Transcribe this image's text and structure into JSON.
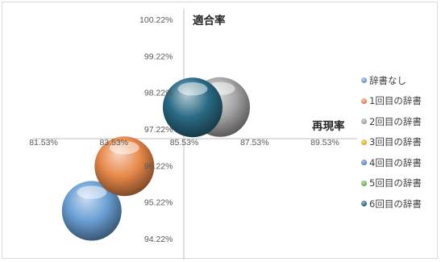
{
  "chart_data": {
    "type": "bubble",
    "xlabel": "再現率",
    "ylabel": "適合率",
    "x_ticks": [
      "81.53%",
      "83.53%",
      "85.53%",
      "87.53%",
      "89.53%"
    ],
    "y_ticks": [
      "100.22%",
      "99.22%",
      "98.22%",
      "97.22%",
      "96.22%",
      "95.22%",
      "94.22%"
    ],
    "xlim": [
      81.53,
      89.53
    ],
    "ylim": [
      94.22,
      100.22
    ],
    "axis_cross": {
      "x": 85.53,
      "y": 97.22
    },
    "legend_position": "right",
    "grid": false,
    "series": [
      {
        "name": "辞書なし",
        "color": "#6a9fd4",
        "points": [
          {
            "x": 82.9,
            "y": 94.98
          }
        ]
      },
      {
        "name": "1回目の辞書",
        "color": "#e8884a",
        "points": [
          {
            "x": 83.83,
            "y": 96.2
          }
        ]
      },
      {
        "name": "2回目の辞書",
        "color": "#a5a5a5",
        "points": [
          {
            "x": 86.55,
            "y": 97.82
          }
        ]
      },
      {
        "name": "3回目の辞書",
        "color": "#e3b31d",
        "points": []
      },
      {
        "name": "4回目の辞書",
        "color": "#5b87c9",
        "points": []
      },
      {
        "name": "5回目の辞書",
        "color": "#6eb34c",
        "points": []
      },
      {
        "name": "6回目の辞書",
        "color": "#2a6a85",
        "points": [
          {
            "x": 85.77,
            "y": 97.81
          }
        ]
      }
    ]
  }
}
